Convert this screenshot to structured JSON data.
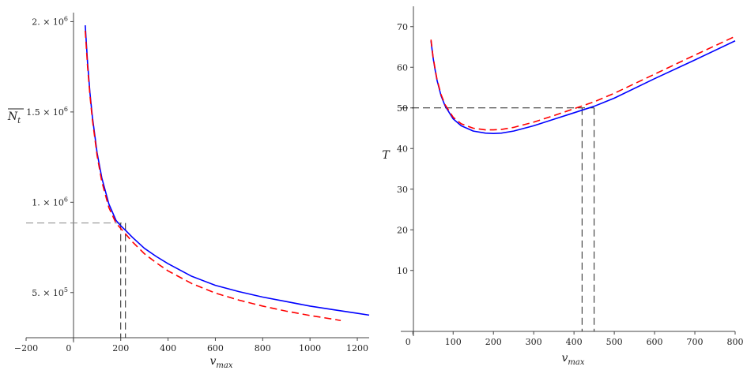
{
  "chart_data": [
    {
      "type": "line",
      "title": "",
      "xlabel": "v",
      "xlabel_sub": "max",
      "ylabel": "N",
      "ylabel_sub": "t",
      "xlim": [
        -200,
        1250
      ],
      "ylim": [
        250000,
        2050000
      ],
      "xticks": [
        {
          "value": -200,
          "label": "−200"
        },
        {
          "value": 0,
          "label": "0"
        },
        {
          "value": 200,
          "label": "200"
        },
        {
          "value": 400,
          "label": "400"
        },
        {
          "value": 600,
          "label": "600"
        },
        {
          "value": 800,
          "label": "800"
        },
        {
          "value": 1000,
          "label": "1000"
        },
        {
          "value": 1200,
          "label": "1200"
        }
      ],
      "yticks": [
        {
          "value": 500000,
          "label": "5. × 10",
          "exp": "5"
        },
        {
          "value": 1000000,
          "label": "1. × 10",
          "exp": "6"
        },
        {
          "value": 1500000,
          "label": "1.5 × 10",
          "exp": "6"
        },
        {
          "value": 2000000,
          "label": "2. × 10",
          "exp": "6"
        }
      ],
      "grid": false,
      "series": [
        {
          "color": "#0000ff",
          "dash": "solid",
          "x": [
            50,
            60,
            70,
            80,
            100,
            120,
            150,
            180,
            200,
            220,
            250,
            300,
            350,
            400,
            500,
            600,
            700,
            800,
            900,
            1000,
            1100,
            1200,
            1250
          ],
          "y": [
            1980000,
            1770000,
            1605000,
            1475000,
            1275000,
            1135000,
            990000,
            900000,
            870000,
            845000,
            805000,
            745000,
            700000,
            660000,
            590000,
            540000,
            505000,
            475000,
            450000,
            425000,
            405000,
            385000,
            375000
          ]
        },
        {
          "color": "#ff0000",
          "dash": "dashed",
          "x": [
            50,
            60,
            70,
            80,
            100,
            120,
            150,
            180,
            200,
            220,
            250,
            300,
            350,
            400,
            500,
            600,
            700,
            800,
            900,
            1000,
            1100,
            1130
          ],
          "y": [
            1950000,
            1750000,
            1590000,
            1460000,
            1260000,
            1115000,
            970000,
            885000,
            855000,
            825000,
            780000,
            715000,
            665000,
            620000,
            550000,
            497000,
            458000,
            425000,
            397000,
            373000,
            352000,
            345000
          ]
        }
      ],
      "reference_lines": [
        {
          "color": "#888888",
          "dash": "dashed",
          "points": [
            [
              -200,
              885000
            ],
            [
              220,
              885000
            ]
          ]
        },
        {
          "color": "#222222",
          "dash": "dashed",
          "points": [
            [
              200,
              885000
            ],
            [
              200,
              250000
            ]
          ]
        },
        {
          "color": "#222222",
          "dash": "dashed",
          "points": [
            [
              220,
              885000
            ],
            [
              220,
              250000
            ]
          ]
        }
      ]
    },
    {
      "type": "line",
      "title": "",
      "xlabel": "v",
      "xlabel_sub": "max",
      "ylabel": "T",
      "ylabel_sub": "",
      "xlim": [
        -30,
        800
      ],
      "ylim": [
        -5,
        75
      ],
      "xticks": [
        {
          "value": 0,
          "label": "0"
        },
        {
          "value": 100,
          "label": "100"
        },
        {
          "value": 200,
          "label": "200"
        },
        {
          "value": 300,
          "label": "300"
        },
        {
          "value": 400,
          "label": "400"
        },
        {
          "value": 500,
          "label": "500"
        },
        {
          "value": 600,
          "label": "600"
        },
        {
          "value": 700,
          "label": "700"
        },
        {
          "value": 800,
          "label": "800"
        }
      ],
      "yticks": [
        {
          "value": 10,
          "label": "10"
        },
        {
          "value": 20,
          "label": "20"
        },
        {
          "value": 30,
          "label": "30"
        },
        {
          "value": 40,
          "label": "40"
        },
        {
          "value": 50,
          "label": "50"
        },
        {
          "value": 60,
          "label": "60"
        },
        {
          "value": 70,
          "label": "70"
        }
      ],
      "grid": false,
      "series": [
        {
          "color": "#0000ff",
          "dash": "solid",
          "x": [
            45,
            50,
            55,
            60,
            70,
            80,
            100,
            120,
            150,
            180,
            200,
            220,
            250,
            300,
            350,
            400,
            450,
            500,
            600,
            700,
            800
          ],
          "y": [
            66.5,
            62.5,
            59.5,
            56.8,
            53.0,
            50.5,
            47.3,
            45.6,
            44.3,
            43.8,
            43.7,
            43.8,
            44.3,
            45.6,
            47.2,
            48.8,
            50.4,
            52.4,
            57.2,
            61.8,
            66.5
          ]
        },
        {
          "color": "#ff0000",
          "dash": "dashed",
          "x": [
            45,
            50,
            55,
            60,
            70,
            80,
            100,
            120,
            150,
            180,
            200,
            220,
            250,
            300,
            350,
            400,
            450,
            500,
            600,
            700,
            800
          ],
          "y": [
            66.8,
            62.7,
            59.7,
            57.0,
            53.3,
            50.8,
            47.7,
            46.1,
            45.0,
            44.6,
            44.6,
            44.7,
            45.2,
            46.5,
            48.1,
            49.8,
            51.5,
            53.6,
            58.3,
            63.0,
            67.6
          ]
        }
      ],
      "reference_lines": [
        {
          "color": "#222222",
          "dash": "dashed",
          "points": [
            [
              -30,
              50
            ],
            [
              450,
              50
            ]
          ]
        },
        {
          "color": "#222222",
          "dash": "dashed",
          "points": [
            [
              420,
              50
            ],
            [
              420,
              -5
            ]
          ]
        },
        {
          "color": "#222222",
          "dash": "dashed",
          "points": [
            [
              450,
              50
            ],
            [
              450,
              -5
            ]
          ]
        }
      ]
    }
  ]
}
